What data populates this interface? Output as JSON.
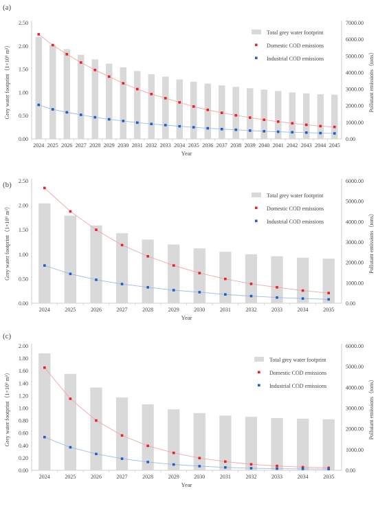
{
  "chart_data": [
    {
      "panel_label": "(a)",
      "type": "bar",
      "years": [
        "2024",
        "2025",
        "2026",
        "2027",
        "2028",
        "2029",
        "2030",
        "2031",
        "2032",
        "2033",
        "2034",
        "2035",
        "2036",
        "2037",
        "2038",
        "2039",
        "2040",
        "2041",
        "2042",
        "2043",
        "2044",
        "2045"
      ],
      "y_left_label": "Grey water footprint（1×10⁹ m³）",
      "y_right_label": "Pollutant emissions（tons）",
      "x_label": "Year",
      "y_left_lim": [
        0,
        2.5
      ],
      "y_left_ticks": [
        "0.00",
        "0.50",
        "1.00",
        "1.50",
        "2.00",
        "2.50"
      ],
      "y_right_lim": [
        0,
        7000
      ],
      "y_right_ticks": [
        "0.00",
        "1000.00",
        "2000.00",
        "3000.00",
        "4000.00",
        "5000.00",
        "6000.00",
        "7000.00"
      ],
      "series": [
        {
          "name": "Total grey water footprint",
          "kind": "bar",
          "axis": "left",
          "color": "#d9d9d9",
          "values": [
            2.19,
            2.02,
            1.93,
            1.81,
            1.71,
            1.62,
            1.54,
            1.46,
            1.39,
            1.34,
            1.28,
            1.23,
            1.19,
            1.15,
            1.12,
            1.09,
            1.06,
            1.03,
            1.0,
            0.98,
            0.96,
            0.95
          ]
        },
        {
          "name": "Domestic COD emissions",
          "kind": "points",
          "axis": "right",
          "color": "#e8222a",
          "line_color": "#f4a6a6",
          "values": [
            6300,
            5650,
            5100,
            4600,
            4150,
            3750,
            3350,
            3000,
            2700,
            2450,
            2200,
            1950,
            1750,
            1570,
            1420,
            1280,
            1150,
            1040,
            940,
            850,
            770,
            720
          ]
        },
        {
          "name": "Industrial COD emissions",
          "kind": "points",
          "axis": "right",
          "color": "#1f5fbf",
          "line_color": "#9dbbe8",
          "values": [
            2050,
            1780,
            1600,
            1450,
            1300,
            1180,
            1080,
            980,
            900,
            830,
            760,
            700,
            640,
            590,
            550,
            500,
            460,
            430,
            400,
            380,
            350,
            330
          ]
        }
      ]
    },
    {
      "panel_label": "(b)",
      "type": "bar",
      "years": [
        "2024",
        "2025",
        "2026",
        "2027",
        "2028",
        "2029",
        "2030",
        "2031",
        "2032",
        "2033",
        "2034",
        "2035"
      ],
      "y_left_label": "Grey water footprint（1×10⁹ m³）",
      "y_right_label": "Pollutant emissions（tons）",
      "x_label": "Year",
      "y_left_lim": [
        0,
        2.5
      ],
      "y_left_ticks": [
        "0.00",
        "0.50",
        "1.00",
        "1.50",
        "2.00",
        "2.50"
      ],
      "y_right_lim": [
        0,
        6000
      ],
      "y_right_ticks": [
        "0.00",
        "1000.00",
        "2000.00",
        "3000.00",
        "4000.00",
        "5000.00",
        "6000.00"
      ],
      "series": [
        {
          "name": "Total grey water footprint",
          "kind": "bar",
          "axis": "left",
          "color": "#d9d9d9",
          "values": [
            2.04,
            1.79,
            1.59,
            1.43,
            1.3,
            1.2,
            1.12,
            1.05,
            1.0,
            0.96,
            0.93,
            0.91
          ]
        },
        {
          "name": "Domestic COD emissions",
          "kind": "points",
          "axis": "right",
          "color": "#e8222a",
          "line_color": "#f4a6a6",
          "values": [
            5650,
            4500,
            3600,
            2850,
            2300,
            1850,
            1480,
            1190,
            950,
            780,
            620,
            500
          ]
        },
        {
          "name": "Industrial COD emissions",
          "kind": "points",
          "axis": "right",
          "color": "#1f5fbf",
          "line_color": "#9dbbe8",
          "values": [
            1850,
            1440,
            1150,
            940,
            780,
            640,
            540,
            430,
            350,
            280,
            230,
            190
          ]
        }
      ]
    },
    {
      "panel_label": "(c)",
      "type": "bar",
      "years": [
        "2024",
        "2025",
        "2026",
        "2027",
        "2028",
        "2029",
        "2030",
        "2031",
        "2032",
        "2033",
        "2034",
        "2035"
      ],
      "y_left_label": "Grey water footprint（1×10⁹ m³）",
      "y_right_label": "Pollutant emissions（tons）",
      "x_label": "Year",
      "y_left_lim": [
        0,
        2.0
      ],
      "y_left_ticks": [
        "0.00",
        "0.20",
        "0.40",
        "0.60",
        "0.80",
        "1.00",
        "1.20",
        "1.40",
        "1.60",
        "1.80",
        "2.00"
      ],
      "y_right_lim": [
        0,
        6000
      ],
      "y_right_ticks": [
        "0.00",
        "1000.00",
        "2000.00",
        "3000.00",
        "4000.00",
        "5000.00",
        "6000.00"
      ],
      "series": [
        {
          "name": "Total grey water footprint",
          "kind": "bar",
          "axis": "left",
          "color": "#d9d9d9",
          "values": [
            1.88,
            1.55,
            1.33,
            1.17,
            1.06,
            0.98,
            0.92,
            0.88,
            0.86,
            0.84,
            0.83,
            0.82
          ]
        },
        {
          "name": "Domestic COD emissions",
          "kind": "points",
          "axis": "right",
          "color": "#e8222a",
          "line_color": "#f4a6a6",
          "values": [
            4950,
            3450,
            2400,
            1680,
            1180,
            840,
            590,
            420,
            290,
            210,
            150,
            120
          ]
        },
        {
          "name": "Industrial COD emissions",
          "kind": "points",
          "axis": "right",
          "color": "#1f5fbf",
          "line_color": "#9dbbe8",
          "values": [
            1600,
            1110,
            790,
            560,
            400,
            280,
            200,
            140,
            100,
            80,
            70,
            60
          ]
        }
      ]
    }
  ]
}
